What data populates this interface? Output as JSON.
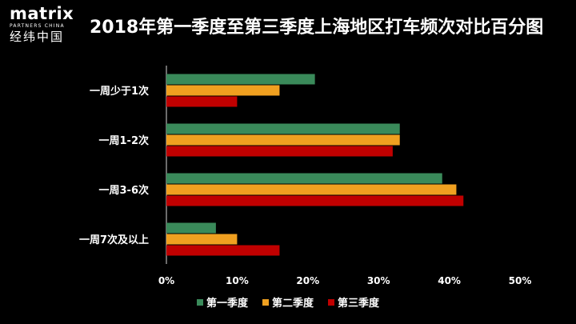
{
  "logo": {
    "name": "matrix",
    "subtitle": "PARTNERS CHINA",
    "chinese": "经纬中国"
  },
  "colors": {
    "background": "#000000",
    "text": "#ffffff",
    "series": [
      "#3a8a5a",
      "#f0a020",
      "#c00000"
    ]
  },
  "chart_data": {
    "type": "bar",
    "orientation": "horizontal",
    "title": "2018年第一季度至第三季度上海地区打车频次对比百分图",
    "categories": [
      "一周少于1次",
      "一周1-2次",
      "一周3-6次",
      "一周7次及以上"
    ],
    "series": [
      {
        "name": "第一季度",
        "values": [
          21,
          33,
          39,
          7
        ]
      },
      {
        "name": "第二季度",
        "values": [
          16,
          33,
          41,
          10
        ]
      },
      {
        "name": "第三季度",
        "values": [
          10,
          32,
          42,
          16
        ]
      }
    ],
    "xlim": [
      0,
      50
    ],
    "x_ticks": [
      "0%",
      "10%",
      "20%",
      "30%",
      "40%",
      "50%"
    ],
    "grid": false,
    "legend_position": "bottom"
  }
}
